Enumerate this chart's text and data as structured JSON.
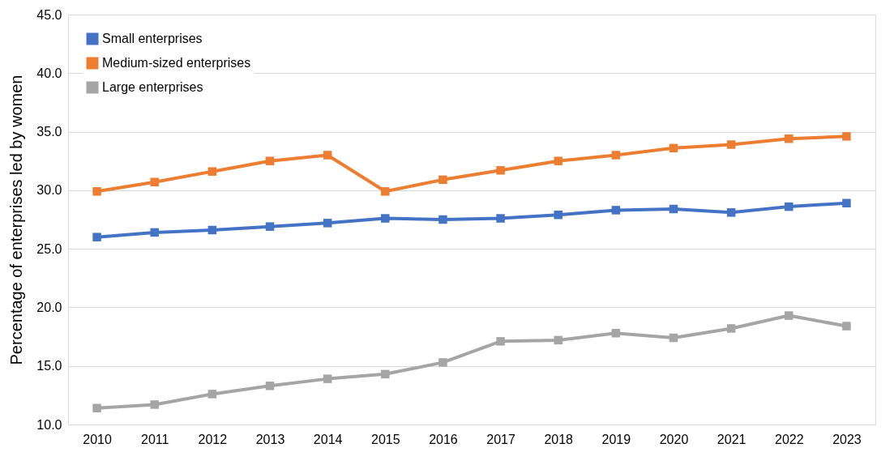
{
  "chart_data": {
    "type": "line",
    "ylabel": "Percentage of enterprises led by women",
    "categories": [
      "2010",
      "2011",
      "2012",
      "2013",
      "2014",
      "2015",
      "2016",
      "2017",
      "2018",
      "2019",
      "2020",
      "2021",
      "2022",
      "2023"
    ],
    "series": [
      {
        "name": "Small enterprises",
        "color": "#4472c4",
        "values": [
          26.0,
          26.4,
          26.6,
          26.9,
          27.2,
          27.6,
          27.5,
          27.6,
          27.9,
          28.3,
          28.4,
          28.1,
          28.6,
          28.9
        ]
      },
      {
        "name": "Medium-sized enterprises",
        "color": "#ed7d31",
        "values": [
          29.9,
          30.7,
          31.6,
          32.5,
          33.0,
          29.9,
          30.9,
          31.7,
          32.5,
          33.0,
          33.6,
          33.9,
          34.4,
          34.6
        ]
      },
      {
        "name": "Large enterprises",
        "color": "#a5a5a5",
        "values": [
          11.4,
          11.7,
          12.6,
          13.3,
          13.9,
          14.3,
          15.3,
          17.1,
          17.2,
          17.8,
          17.4,
          18.2,
          19.3,
          18.4
        ]
      }
    ],
    "ylim": [
      10,
      45
    ],
    "yticks": [
      {
        "value": 10,
        "label": "10.0"
      },
      {
        "value": 15,
        "label": "15.0"
      },
      {
        "value": 20,
        "label": "20.0"
      },
      {
        "value": 25,
        "label": "25.0"
      },
      {
        "value": 30,
        "label": "30.0"
      },
      {
        "value": 35,
        "label": "35.0"
      },
      {
        "value": 40,
        "label": "40.0"
      },
      {
        "value": 45,
        "label": "45.0"
      }
    ],
    "grid": "y",
    "legend": "top left",
    "marker": "square",
    "line_style": "solid"
  }
}
